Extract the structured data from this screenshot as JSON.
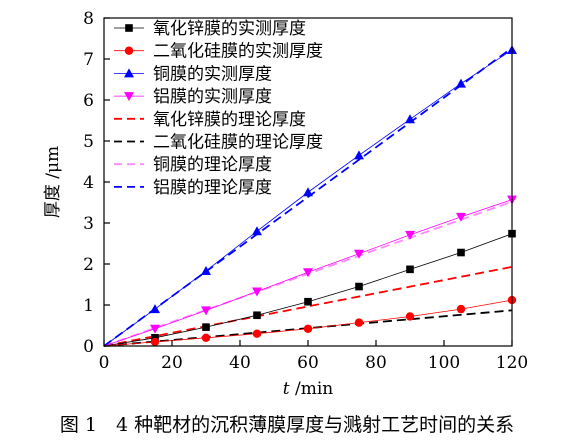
{
  "chart_data": {
    "type": "line",
    "title": "",
    "xlabel_italic": "t",
    "xlabel_rest": " /min",
    "ylabel": "厚度 /μm",
    "xlim": [
      0,
      120
    ],
    "ylim": [
      0,
      8
    ],
    "x_ticks": [
      0,
      20,
      40,
      60,
      80,
      100,
      120
    ],
    "y_ticks": [
      0,
      1,
      2,
      3,
      4,
      5,
      6,
      7,
      8
    ],
    "grid": false,
    "legend_position": "top-left",
    "measured_series": [
      {
        "name": "氧化锌膜的实测厚度",
        "marker": "square",
        "color": "#000000",
        "x": [
          15,
          30,
          45,
          60,
          75,
          90,
          105,
          120
        ],
        "y": [
          0.2,
          0.46,
          0.75,
          1.08,
          1.45,
          1.87,
          2.28,
          2.74
        ]
      },
      {
        "name": "二氧化硅膜的实测厚度",
        "marker": "circle",
        "color": "#ff0000",
        "x": [
          15,
          30,
          45,
          60,
          75,
          90,
          105,
          120
        ],
        "y": [
          0.1,
          0.2,
          0.3,
          0.42,
          0.57,
          0.72,
          0.9,
          1.12
        ]
      },
      {
        "name": "铜膜的实测厚度",
        "marker": "triangle-up",
        "color": "#0000ff",
        "x": [
          15,
          30,
          45,
          60,
          75,
          90,
          105,
          120
        ],
        "y": [
          0.9,
          1.83,
          2.8,
          3.75,
          4.65,
          5.53,
          6.4,
          7.22
        ]
      },
      {
        "name": "铝膜的实测厚度",
        "marker": "triangle-down",
        "color": "#ff00ff",
        "x": [
          15,
          30,
          45,
          60,
          75,
          90,
          105,
          120
        ],
        "y": [
          0.42,
          0.87,
          1.33,
          1.8,
          2.25,
          2.71,
          3.15,
          3.57
        ]
      }
    ],
    "theory_series": [
      {
        "name": "氧化锌膜的理论厚度",
        "color": "#ff0000",
        "x": [
          0,
          120
        ],
        "y": [
          0,
          1.93
        ]
      },
      {
        "name": "二氧化硅膜的理论厚度",
        "color": "#000000",
        "x": [
          0,
          120
        ],
        "y": [
          0,
          0.87
        ]
      },
      {
        "name": "铜膜的理论厚度",
        "color": "#ff88ff",
        "x": [
          0,
          120
        ],
        "y": [
          0,
          3.52
        ]
      },
      {
        "name": "铝膜的理论厚度",
        "color": "#0000ff",
        "x": [
          0,
          120
        ],
        "y": [
          0,
          7.27
        ]
      }
    ],
    "legend_order": [
      "氧化锌膜的实测厚度",
      "二氧化硅膜的实测厚度",
      "铜膜的实测厚度",
      "铝膜的实测厚度",
      "氧化锌膜的理论厚度",
      "二氧化硅膜的理论厚度",
      "铜膜的理论厚度",
      "铝膜的理论厚度"
    ],
    "legend_colors": [
      "#000000",
      "#ff0000",
      "#0000ff",
      "#ff00ff",
      "#ff0000",
      "#000000",
      "#ff88ff",
      "#0000ff"
    ]
  },
  "caption": "图 1　4 种靶材的沉积薄膜厚度与溅射工艺时间的关系"
}
